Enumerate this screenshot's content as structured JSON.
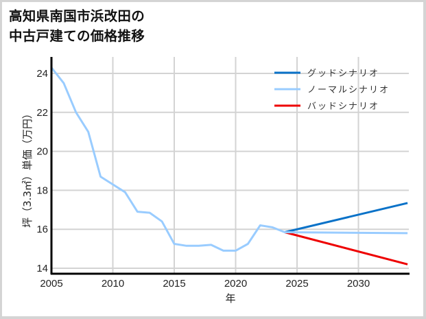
{
  "title": {
    "line1": "高知県南国市浜改田の",
    "line2": "中古戸建ての価格推移"
  },
  "axes": {
    "xlabel": "年",
    "ylabel": "坪（3.3㎡）単価（万円）",
    "xticks": [
      "2005",
      "2010",
      "2015",
      "2020",
      "2025",
      "2030"
    ],
    "yticks": [
      "14",
      "16",
      "18",
      "20",
      "22",
      "24"
    ]
  },
  "legend": {
    "items": [
      {
        "label": "グッドシナリオ",
        "color": "#0a72c8"
      },
      {
        "label": "ノーマルシナリオ",
        "color": "#99ccff"
      },
      {
        "label": "バッドシナリオ",
        "color": "#ee0000"
      }
    ]
  },
  "chart_data": {
    "type": "line",
    "title": "高知県南国市浜改田の中古戸建ての価格推移",
    "xlabel": "年",
    "ylabel": "坪（3.3㎡）単価（万円）",
    "xlim": [
      2005,
      2034
    ],
    "ylim": [
      13.8,
      24.8
    ],
    "grid": true,
    "legend_position": "upper right",
    "series": [
      {
        "name": "ノーマルシナリオ",
        "color": "#99ccff",
        "x": [
          2005,
          2006,
          2007,
          2008,
          2009,
          2010,
          2011,
          2012,
          2013,
          2014,
          2015,
          2016,
          2017,
          2018,
          2019,
          2020,
          2021,
          2022,
          2023,
          2024,
          2034
        ],
        "values": [
          24.3,
          23.5,
          22.0,
          21.0,
          18.7,
          18.3,
          17.9,
          16.9,
          16.85,
          16.4,
          15.25,
          15.15,
          15.15,
          15.2,
          14.9,
          14.9,
          15.25,
          16.2,
          16.1,
          15.85,
          15.8
        ]
      },
      {
        "name": "グッドシナリオ",
        "color": "#0a72c8",
        "x": [
          2024,
          2034
        ],
        "values": [
          15.85,
          17.35
        ]
      },
      {
        "name": "バッドシナリオ",
        "color": "#ee0000",
        "x": [
          2024,
          2034
        ],
        "values": [
          15.85,
          14.2
        ]
      }
    ]
  }
}
